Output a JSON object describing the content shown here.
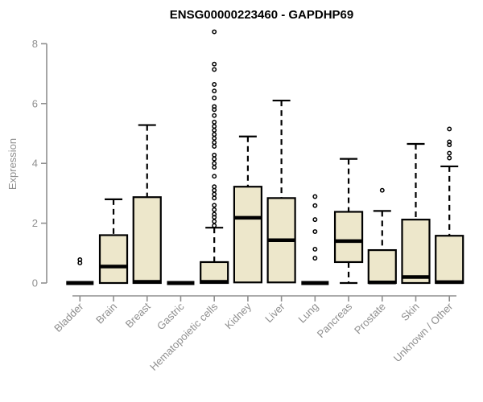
{
  "page": {
    "background": "#ffffff"
  },
  "chart_data": {
    "type": "boxplot",
    "title": "ENSG00000223460 - GAPDHP69",
    "ylabel": "Expression",
    "xlabel": "",
    "ylim": [
      0,
      8.5
    ],
    "yticks": [
      0,
      2,
      4,
      6,
      8
    ],
    "grid": false,
    "legend": "none",
    "categories": [
      "Bladder",
      "Brain",
      "Breast",
      "Gastric",
      "Hematopoietic cells",
      "Kidney",
      "Liver",
      "Lung",
      "Pancreas",
      "Prostate",
      "Skin",
      "Unknown / Other"
    ],
    "boxes": [
      {
        "category": "Bladder",
        "whisker_low": 0,
        "q1": 0,
        "median": 0,
        "q3": 0,
        "whisker_high": 0,
        "outliers": [
          0.67,
          0.78
        ]
      },
      {
        "category": "Brain",
        "whisker_low": 0,
        "q1": 0,
        "median": 0.55,
        "q3": 1.6,
        "whisker_high": 2.8,
        "outliers": []
      },
      {
        "category": "Breast",
        "whisker_low": 0,
        "q1": 0,
        "median": 0.04,
        "q3": 2.87,
        "whisker_high": 5.28,
        "outliers": []
      },
      {
        "category": "Gastric",
        "whisker_low": 0,
        "q1": 0,
        "median": 0,
        "q3": 0,
        "whisker_high": 0,
        "outliers": []
      },
      {
        "category": "Hematopoietic cells",
        "whisker_low": 0,
        "q1": 0,
        "median": 0.04,
        "q3": 0.7,
        "whisker_high": 1.85,
        "outliers": [
          1.92,
          2.06,
          2.2,
          2.3,
          2.45,
          2.6,
          2.84,
          2.97,
          3.1,
          3.22,
          3.57,
          3.87,
          4.0,
          4.15,
          4.28,
          4.57,
          4.7,
          4.84,
          4.97,
          5.11,
          5.24,
          5.38,
          5.6,
          5.8,
          5.9,
          6.19,
          6.42,
          6.64,
          7.14,
          7.32,
          8.4
        ]
      },
      {
        "category": "Kidney",
        "whisker_low": 0,
        "q1": 0.02,
        "median": 2.18,
        "q3": 3.22,
        "whisker_high": 4.9,
        "outliers": []
      },
      {
        "category": "Liver",
        "whisker_low": 0,
        "q1": 0.02,
        "median": 1.43,
        "q3": 2.84,
        "whisker_high": 6.1,
        "outliers": []
      },
      {
        "category": "Lung",
        "whisker_low": 0,
        "q1": 0,
        "median": 0,
        "q3": 0,
        "whisker_high": 0,
        "outliers": [
          0.83,
          1.13,
          1.72,
          2.12,
          2.59,
          2.89
        ]
      },
      {
        "category": "Pancreas",
        "whisker_low": 0,
        "q1": 0.7,
        "median": 1.4,
        "q3": 2.38,
        "whisker_high": 4.15,
        "outliers": []
      },
      {
        "category": "Prostate",
        "whisker_low": 0,
        "q1": 0,
        "median": 0.02,
        "q3": 1.1,
        "whisker_high": 2.41,
        "outliers": [
          3.1
        ]
      },
      {
        "category": "Skin",
        "whisker_low": 0,
        "q1": 0,
        "median": 0.2,
        "q3": 2.12,
        "whisker_high": 4.65,
        "outliers": []
      },
      {
        "category": "Unknown / Other",
        "whisker_low": 0,
        "q1": 0,
        "median": 0.03,
        "q3": 1.58,
        "whisker_high": 3.9,
        "outliers": [
          4.18,
          4.34,
          4.62,
          4.72,
          5.15
        ]
      }
    ],
    "colors": {
      "box_fill": "#ede7cb",
      "box_border": "#000000",
      "median": "#000000",
      "whisker": "#000000",
      "outlier_stroke": "#000000",
      "axis": "#8f8f8f",
      "tick_text": "#8f8f8f",
      "title_text": "#000000"
    }
  }
}
